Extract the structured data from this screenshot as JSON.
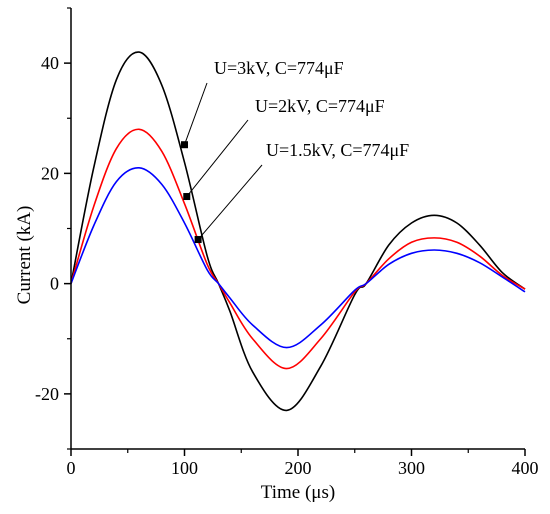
{
  "chart_data": {
    "type": "line",
    "xlabel": "Time (μs)",
    "ylabel": "Current (kA)",
    "xlim": [
      0,
      400
    ],
    "ylim": [
      -30,
      50
    ],
    "xticks": [
      0,
      100,
      200,
      300,
      400
    ],
    "yticks": [
      -20,
      0,
      20,
      40
    ],
    "grid": false,
    "colors": {
      "black": "#000000",
      "red": "#ff0000",
      "blue": "#0000ff"
    },
    "series": [
      {
        "name": "U=3kV, C=774μF",
        "color": "#000000",
        "x": [
          0,
          20,
          40,
          60,
          80,
          100,
          120,
          130,
          140,
          160,
          190,
          220,
          250,
          260,
          280,
          300,
          320,
          340,
          360,
          380,
          400
        ],
        "y": [
          0,
          21,
          37,
          42,
          36,
          22,
          5,
          0,
          -5,
          -16,
          -23,
          -15,
          -2,
          0,
          7,
          11,
          12.4,
          11,
          7,
          2,
          -1
        ]
      },
      {
        "name": "U=2kV, C=774μF",
        "color": "#ff0000",
        "x": [
          0,
          20,
          40,
          60,
          80,
          100,
          120,
          130,
          140,
          160,
          190,
          220,
          250,
          260,
          280,
          300,
          320,
          340,
          360,
          380,
          400
        ],
        "y": [
          0,
          14,
          24.5,
          28,
          24,
          14.5,
          3.5,
          0,
          -3.5,
          -10,
          -15.4,
          -10,
          -1.5,
          0,
          4.5,
          7.5,
          8.3,
          7.5,
          5,
          1.5,
          -1
        ]
      },
      {
        "name": "U=1.5kV, C=774μF",
        "color": "#0000ff",
        "x": [
          0,
          20,
          40,
          60,
          80,
          100,
          120,
          130,
          140,
          160,
          190,
          220,
          250,
          260,
          280,
          300,
          320,
          340,
          360,
          380,
          400
        ],
        "y": [
          0,
          10.5,
          18.5,
          21,
          18,
          11,
          2.5,
          0,
          -2.6,
          -7.5,
          -11.6,
          -7.5,
          -1.2,
          0,
          3.5,
          5.5,
          6.1,
          5.5,
          3.8,
          1.2,
          -1.5
        ]
      }
    ],
    "annotations": [
      {
        "text": "U=3kV, C=774μF",
        "x": 100,
        "y": 25.2
      },
      {
        "text": "U=2kV, C=774μF",
        "x": 102,
        "y": 15.8
      },
      {
        "text": "U=1.5kV, C=774μF",
        "x": 112,
        "y": 8
      }
    ]
  }
}
